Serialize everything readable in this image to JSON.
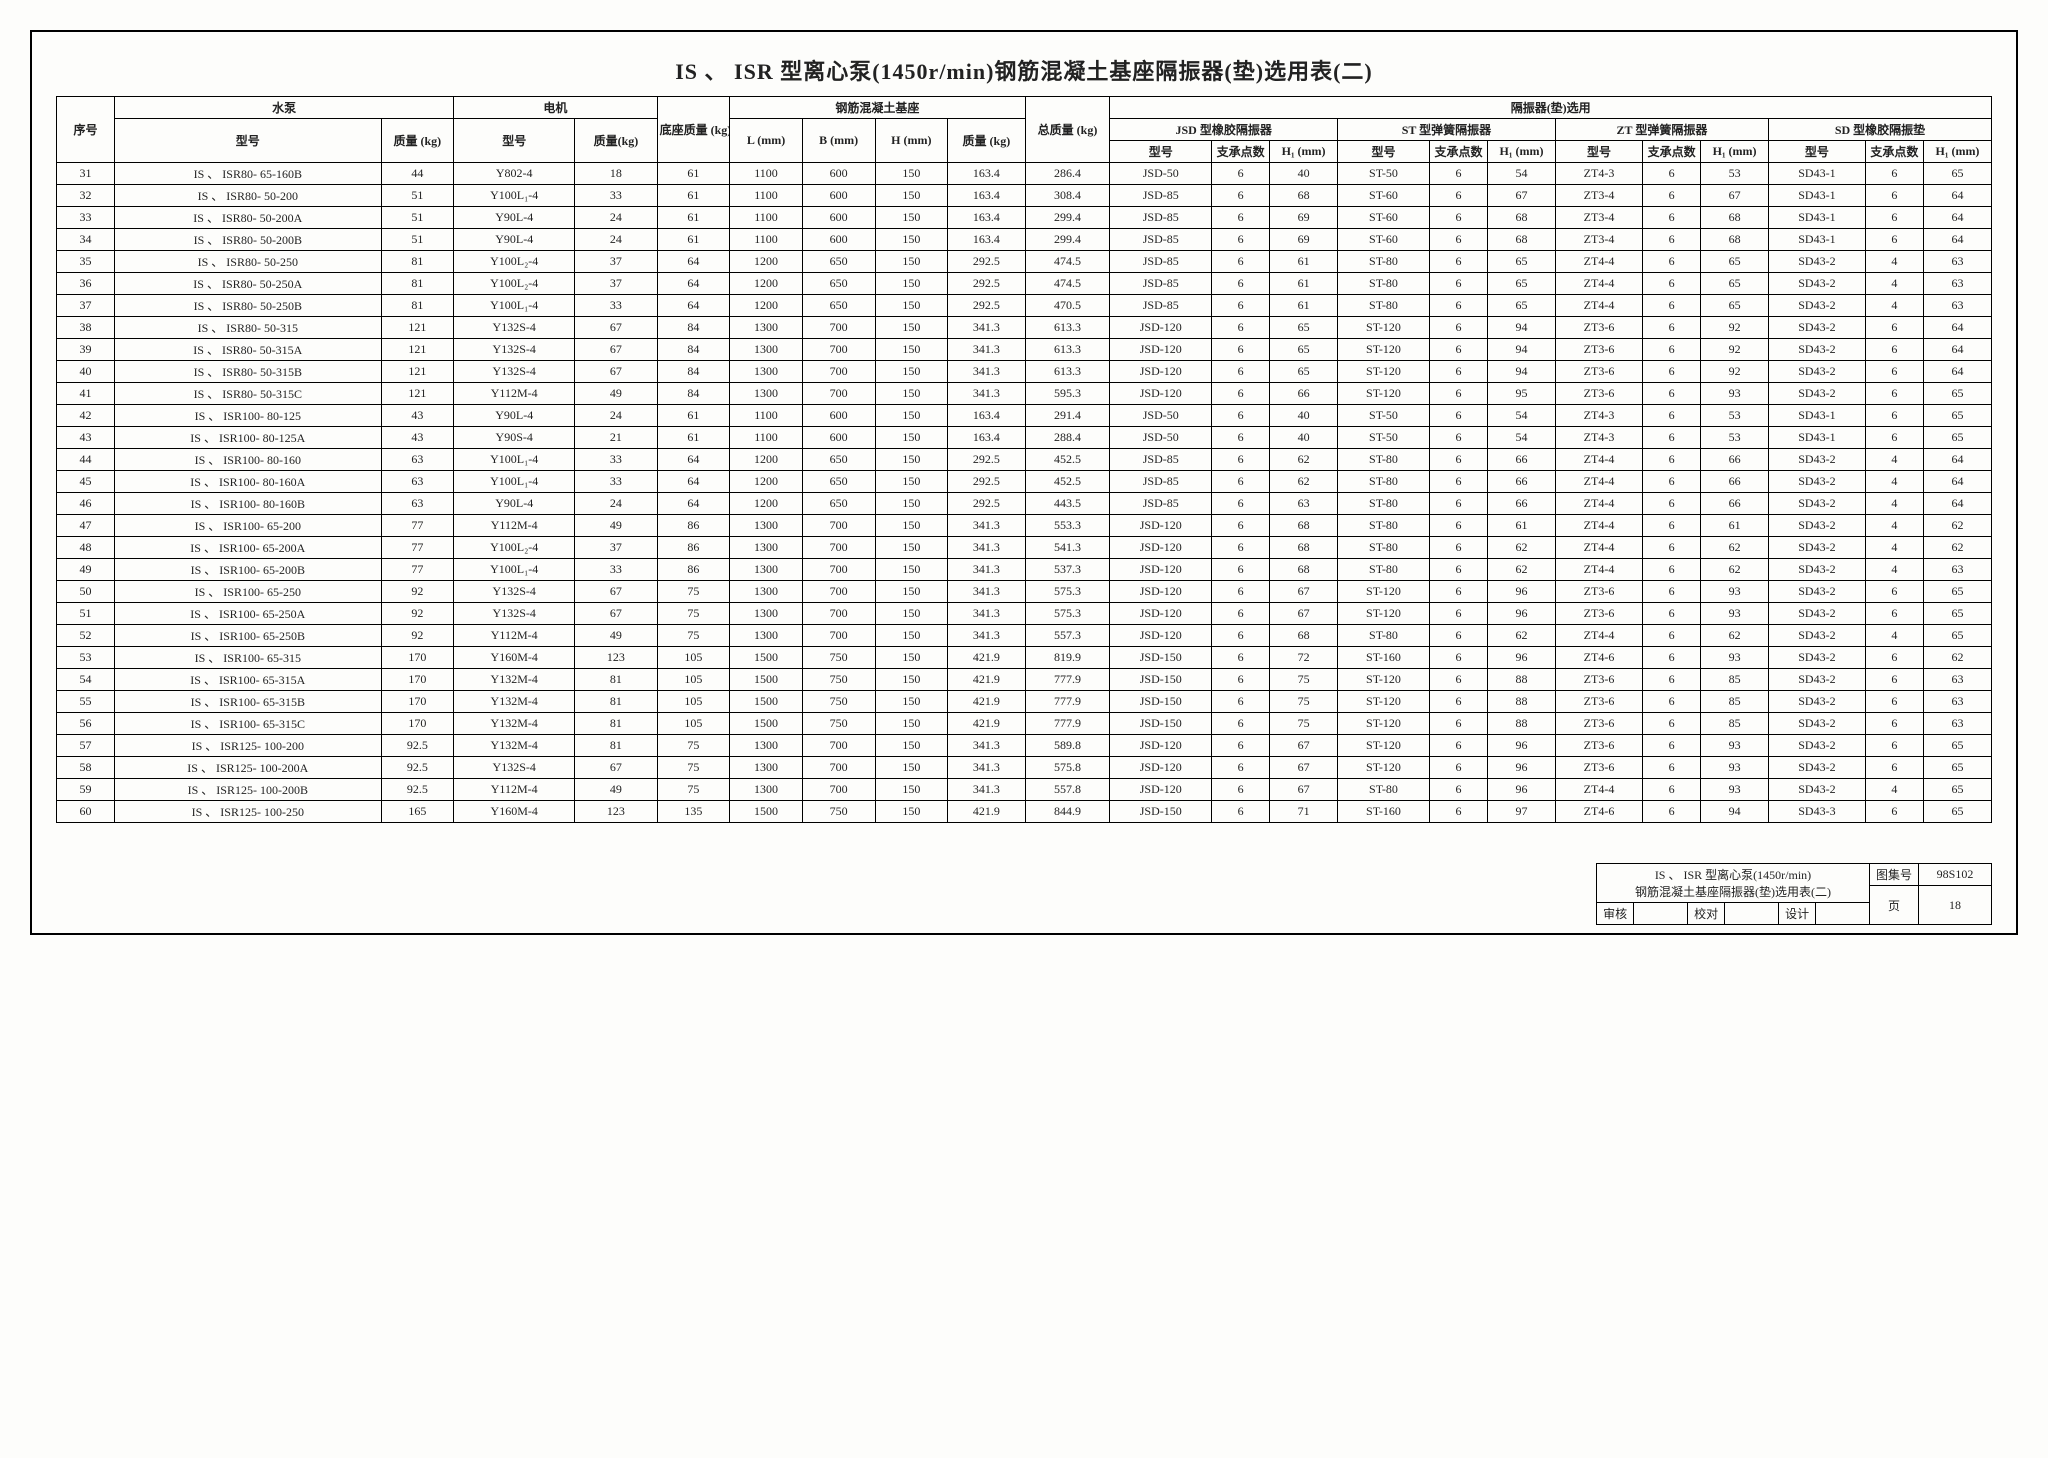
{
  "title": "IS 、 ISR 型离心泵(1450r/min)钢筋混凝土基座隔振器(垫)选用表(二)",
  "header": {
    "seq": "序号",
    "pump": "水泵",
    "pump_model": "型号",
    "pump_mass": "质量 (kg)",
    "motor": "电机",
    "motor_model": "型号",
    "motor_mass": "质量(kg)",
    "base_mass": "底座质量 (kg)",
    "concrete": "钢筋混凝土基座",
    "L": "L (mm)",
    "B": "B (mm)",
    "H": "H (mm)",
    "cmass": "质量 (kg)",
    "total": "总质量 (kg)",
    "isolator": "隔振器(垫)选用",
    "jsd": "JSD 型橡胶隔振器",
    "st": "ST 型弹簧隔振器",
    "zt": "ZT 型弹簧隔振器",
    "sd": "SD 型橡胶隔振垫",
    "sub_model": "型号",
    "sub_n": "支承点数",
    "sub_h1": "H₁ (mm)"
  },
  "rows": [
    {
      "n": "31",
      "pm": "IS 、 ISR80- 65-160B",
      "pw": "44",
      "mm": "Y802-4",
      "mw": "18",
      "bw": "61",
      "L": "1100",
      "B": "600",
      "H": "150",
      "cm": "163.4",
      "tw": "286.4",
      "jm": "JSD-50",
      "jn": "6",
      "jh": "40",
      "sm": "ST-50",
      "sn": "6",
      "sh": "54",
      "zm": "ZT4-3",
      "zn": "6",
      "zh": "53",
      "dm": "SD43-1",
      "dn": "6",
      "dh": "65"
    },
    {
      "n": "32",
      "pm": "IS 、 ISR80- 50-200",
      "pw": "51",
      "mm": "Y100L₁-4",
      "mw": "33",
      "bw": "61",
      "L": "1100",
      "B": "600",
      "H": "150",
      "cm": "163.4",
      "tw": "308.4",
      "jm": "JSD-85",
      "jn": "6",
      "jh": "68",
      "sm": "ST-60",
      "sn": "6",
      "sh": "67",
      "zm": "ZT3-4",
      "zn": "6",
      "zh": "67",
      "dm": "SD43-1",
      "dn": "6",
      "dh": "64"
    },
    {
      "n": "33",
      "pm": "IS 、 ISR80- 50-200A",
      "pw": "51",
      "mm": "Y90L-4",
      "mw": "24",
      "bw": "61",
      "L": "1100",
      "B": "600",
      "H": "150",
      "cm": "163.4",
      "tw": "299.4",
      "jm": "JSD-85",
      "jn": "6",
      "jh": "69",
      "sm": "ST-60",
      "sn": "6",
      "sh": "68",
      "zm": "ZT3-4",
      "zn": "6",
      "zh": "68",
      "dm": "SD43-1",
      "dn": "6",
      "dh": "64"
    },
    {
      "n": "34",
      "pm": "IS 、 ISR80- 50-200B",
      "pw": "51",
      "mm": "Y90L-4",
      "mw": "24",
      "bw": "61",
      "L": "1100",
      "B": "600",
      "H": "150",
      "cm": "163.4",
      "tw": "299.4",
      "jm": "JSD-85",
      "jn": "6",
      "jh": "69",
      "sm": "ST-60",
      "sn": "6",
      "sh": "68",
      "zm": "ZT3-4",
      "zn": "6",
      "zh": "68",
      "dm": "SD43-1",
      "dn": "6",
      "dh": "64"
    },
    {
      "n": "35",
      "pm": "IS 、 ISR80- 50-250",
      "pw": "81",
      "mm": "Y100L₂-4",
      "mw": "37",
      "bw": "64",
      "L": "1200",
      "B": "650",
      "H": "150",
      "cm": "292.5",
      "tw": "474.5",
      "jm": "JSD-85",
      "jn": "6",
      "jh": "61",
      "sm": "ST-80",
      "sn": "6",
      "sh": "65",
      "zm": "ZT4-4",
      "zn": "6",
      "zh": "65",
      "dm": "SD43-2",
      "dn": "4",
      "dh": "63"
    },
    {
      "n": "36",
      "pm": "IS 、 ISR80- 50-250A",
      "pw": "81",
      "mm": "Y100L₂-4",
      "mw": "37",
      "bw": "64",
      "L": "1200",
      "B": "650",
      "H": "150",
      "cm": "292.5",
      "tw": "474.5",
      "jm": "JSD-85",
      "jn": "6",
      "jh": "61",
      "sm": "ST-80",
      "sn": "6",
      "sh": "65",
      "zm": "ZT4-4",
      "zn": "6",
      "zh": "65",
      "dm": "SD43-2",
      "dn": "4",
      "dh": "63"
    },
    {
      "n": "37",
      "pm": "IS 、 ISR80- 50-250B",
      "pw": "81",
      "mm": "Y100L₁-4",
      "mw": "33",
      "bw": "64",
      "L": "1200",
      "B": "650",
      "H": "150",
      "cm": "292.5",
      "tw": "470.5",
      "jm": "JSD-85",
      "jn": "6",
      "jh": "61",
      "sm": "ST-80",
      "sn": "6",
      "sh": "65",
      "zm": "ZT4-4",
      "zn": "6",
      "zh": "65",
      "dm": "SD43-2",
      "dn": "4",
      "dh": "63"
    },
    {
      "n": "38",
      "pm": "IS 、 ISR80- 50-315",
      "pw": "121",
      "mm": "Y132S-4",
      "mw": "67",
      "bw": "84",
      "L": "1300",
      "B": "700",
      "H": "150",
      "cm": "341.3",
      "tw": "613.3",
      "jm": "JSD-120",
      "jn": "6",
      "jh": "65",
      "sm": "ST-120",
      "sn": "6",
      "sh": "94",
      "zm": "ZT3-6",
      "zn": "6",
      "zh": "92",
      "dm": "SD43-2",
      "dn": "6",
      "dh": "64"
    },
    {
      "n": "39",
      "pm": "IS 、 ISR80- 50-315A",
      "pw": "121",
      "mm": "Y132S-4",
      "mw": "67",
      "bw": "84",
      "L": "1300",
      "B": "700",
      "H": "150",
      "cm": "341.3",
      "tw": "613.3",
      "jm": "JSD-120",
      "jn": "6",
      "jh": "65",
      "sm": "ST-120",
      "sn": "6",
      "sh": "94",
      "zm": "ZT3-6",
      "zn": "6",
      "zh": "92",
      "dm": "SD43-2",
      "dn": "6",
      "dh": "64"
    },
    {
      "n": "40",
      "pm": "IS 、 ISR80- 50-315B",
      "pw": "121",
      "mm": "Y132S-4",
      "mw": "67",
      "bw": "84",
      "L": "1300",
      "B": "700",
      "H": "150",
      "cm": "341.3",
      "tw": "613.3",
      "jm": "JSD-120",
      "jn": "6",
      "jh": "65",
      "sm": "ST-120",
      "sn": "6",
      "sh": "94",
      "zm": "ZT3-6",
      "zn": "6",
      "zh": "92",
      "dm": "SD43-2",
      "dn": "6",
      "dh": "64"
    },
    {
      "n": "41",
      "pm": "IS 、 ISR80- 50-315C",
      "pw": "121",
      "mm": "Y112M-4",
      "mw": "49",
      "bw": "84",
      "L": "1300",
      "B": "700",
      "H": "150",
      "cm": "341.3",
      "tw": "595.3",
      "jm": "JSD-120",
      "jn": "6",
      "jh": "66",
      "sm": "ST-120",
      "sn": "6",
      "sh": "95",
      "zm": "ZT3-6",
      "zn": "6",
      "zh": "93",
      "dm": "SD43-2",
      "dn": "6",
      "dh": "65"
    },
    {
      "n": "42",
      "pm": "IS 、 ISR100- 80-125",
      "pw": "43",
      "mm": "Y90L-4",
      "mw": "24",
      "bw": "61",
      "L": "1100",
      "B": "600",
      "H": "150",
      "cm": "163.4",
      "tw": "291.4",
      "jm": "JSD-50",
      "jn": "6",
      "jh": "40",
      "sm": "ST-50",
      "sn": "6",
      "sh": "54",
      "zm": "ZT4-3",
      "zn": "6",
      "zh": "53",
      "dm": "SD43-1",
      "dn": "6",
      "dh": "65"
    },
    {
      "n": "43",
      "pm": "IS 、 ISR100- 80-125A",
      "pw": "43",
      "mm": "Y90S-4",
      "mw": "21",
      "bw": "61",
      "L": "1100",
      "B": "600",
      "H": "150",
      "cm": "163.4",
      "tw": "288.4",
      "jm": "JSD-50",
      "jn": "6",
      "jh": "40",
      "sm": "ST-50",
      "sn": "6",
      "sh": "54",
      "zm": "ZT4-3",
      "zn": "6",
      "zh": "53",
      "dm": "SD43-1",
      "dn": "6",
      "dh": "65"
    },
    {
      "n": "44",
      "pm": "IS 、 ISR100- 80-160",
      "pw": "63",
      "mm": "Y100L₁-4",
      "mw": "33",
      "bw": "64",
      "L": "1200",
      "B": "650",
      "H": "150",
      "cm": "292.5",
      "tw": "452.5",
      "jm": "JSD-85",
      "jn": "6",
      "jh": "62",
      "sm": "ST-80",
      "sn": "6",
      "sh": "66",
      "zm": "ZT4-4",
      "zn": "6",
      "zh": "66",
      "dm": "SD43-2",
      "dn": "4",
      "dh": "64"
    },
    {
      "n": "45",
      "pm": "IS 、 ISR100- 80-160A",
      "pw": "63",
      "mm": "Y100L₁-4",
      "mw": "33",
      "bw": "64",
      "L": "1200",
      "B": "650",
      "H": "150",
      "cm": "292.5",
      "tw": "452.5",
      "jm": "JSD-85",
      "jn": "6",
      "jh": "62",
      "sm": "ST-80",
      "sn": "6",
      "sh": "66",
      "zm": "ZT4-4",
      "zn": "6",
      "zh": "66",
      "dm": "SD43-2",
      "dn": "4",
      "dh": "64"
    },
    {
      "n": "46",
      "pm": "IS 、 ISR100- 80-160B",
      "pw": "63",
      "mm": "Y90L-4",
      "mw": "24",
      "bw": "64",
      "L": "1200",
      "B": "650",
      "H": "150",
      "cm": "292.5",
      "tw": "443.5",
      "jm": "JSD-85",
      "jn": "6",
      "jh": "63",
      "sm": "ST-80",
      "sn": "6",
      "sh": "66",
      "zm": "ZT4-4",
      "zn": "6",
      "zh": "66",
      "dm": "SD43-2",
      "dn": "4",
      "dh": "64"
    },
    {
      "n": "47",
      "pm": "IS 、 ISR100- 65-200",
      "pw": "77",
      "mm": "Y112M-4",
      "mw": "49",
      "bw": "86",
      "L": "1300",
      "B": "700",
      "H": "150",
      "cm": "341.3",
      "tw": "553.3",
      "jm": "JSD-120",
      "jn": "6",
      "jh": "68",
      "sm": "ST-80",
      "sn": "6",
      "sh": "61",
      "zm": "ZT4-4",
      "zn": "6",
      "zh": "61",
      "dm": "SD43-2",
      "dn": "4",
      "dh": "62"
    },
    {
      "n": "48",
      "pm": "IS 、 ISR100- 65-200A",
      "pw": "77",
      "mm": "Y100L₂-4",
      "mw": "37",
      "bw": "86",
      "L": "1300",
      "B": "700",
      "H": "150",
      "cm": "341.3",
      "tw": "541.3",
      "jm": "JSD-120",
      "jn": "6",
      "jh": "68",
      "sm": "ST-80",
      "sn": "6",
      "sh": "62",
      "zm": "ZT4-4",
      "zn": "6",
      "zh": "62",
      "dm": "SD43-2",
      "dn": "4",
      "dh": "62"
    },
    {
      "n": "49",
      "pm": "IS 、 ISR100- 65-200B",
      "pw": "77",
      "mm": "Y100L₁-4",
      "mw": "33",
      "bw": "86",
      "L": "1300",
      "B": "700",
      "H": "150",
      "cm": "341.3",
      "tw": "537.3",
      "jm": "JSD-120",
      "jn": "6",
      "jh": "68",
      "sm": "ST-80",
      "sn": "6",
      "sh": "62",
      "zm": "ZT4-4",
      "zn": "6",
      "zh": "62",
      "dm": "SD43-2",
      "dn": "4",
      "dh": "63"
    },
    {
      "n": "50",
      "pm": "IS 、 ISR100- 65-250",
      "pw": "92",
      "mm": "Y132S-4",
      "mw": "67",
      "bw": "75",
      "L": "1300",
      "B": "700",
      "H": "150",
      "cm": "341.3",
      "tw": "575.3",
      "jm": "JSD-120",
      "jn": "6",
      "jh": "67",
      "sm": "ST-120",
      "sn": "6",
      "sh": "96",
      "zm": "ZT3-6",
      "zn": "6",
      "zh": "93",
      "dm": "SD43-2",
      "dn": "6",
      "dh": "65"
    },
    {
      "n": "51",
      "pm": "IS 、 ISR100- 65-250A",
      "pw": "92",
      "mm": "Y132S-4",
      "mw": "67",
      "bw": "75",
      "L": "1300",
      "B": "700",
      "H": "150",
      "cm": "341.3",
      "tw": "575.3",
      "jm": "JSD-120",
      "jn": "6",
      "jh": "67",
      "sm": "ST-120",
      "sn": "6",
      "sh": "96",
      "zm": "ZT3-6",
      "zn": "6",
      "zh": "93",
      "dm": "SD43-2",
      "dn": "6",
      "dh": "65"
    },
    {
      "n": "52",
      "pm": "IS 、 ISR100- 65-250B",
      "pw": "92",
      "mm": "Y112M-4",
      "mw": "49",
      "bw": "75",
      "L": "1300",
      "B": "700",
      "H": "150",
      "cm": "341.3",
      "tw": "557.3",
      "jm": "JSD-120",
      "jn": "6",
      "jh": "68",
      "sm": "ST-80",
      "sn": "6",
      "sh": "62",
      "zm": "ZT4-4",
      "zn": "6",
      "zh": "62",
      "dm": "SD43-2",
      "dn": "4",
      "dh": "65"
    },
    {
      "n": "53",
      "pm": "IS 、 ISR100- 65-315",
      "pw": "170",
      "mm": "Y160M-4",
      "mw": "123",
      "bw": "105",
      "L": "1500",
      "B": "750",
      "H": "150",
      "cm": "421.9",
      "tw": "819.9",
      "jm": "JSD-150",
      "jn": "6",
      "jh": "72",
      "sm": "ST-160",
      "sn": "6",
      "sh": "96",
      "zm": "ZT4-6",
      "zn": "6",
      "zh": "93",
      "dm": "SD43-2",
      "dn": "6",
      "dh": "62"
    },
    {
      "n": "54",
      "pm": "IS 、 ISR100- 65-315A",
      "pw": "170",
      "mm": "Y132M-4",
      "mw": "81",
      "bw": "105",
      "L": "1500",
      "B": "750",
      "H": "150",
      "cm": "421.9",
      "tw": "777.9",
      "jm": "JSD-150",
      "jn": "6",
      "jh": "75",
      "sm": "ST-120",
      "sn": "6",
      "sh": "88",
      "zm": "ZT3-6",
      "zn": "6",
      "zh": "85",
      "dm": "SD43-2",
      "dn": "6",
      "dh": "63"
    },
    {
      "n": "55",
      "pm": "IS 、 ISR100- 65-315B",
      "pw": "170",
      "mm": "Y132M-4",
      "mw": "81",
      "bw": "105",
      "L": "1500",
      "B": "750",
      "H": "150",
      "cm": "421.9",
      "tw": "777.9",
      "jm": "JSD-150",
      "jn": "6",
      "jh": "75",
      "sm": "ST-120",
      "sn": "6",
      "sh": "88",
      "zm": "ZT3-6",
      "zn": "6",
      "zh": "85",
      "dm": "SD43-2",
      "dn": "6",
      "dh": "63"
    },
    {
      "n": "56",
      "pm": "IS 、 ISR100- 65-315C",
      "pw": "170",
      "mm": "Y132M-4",
      "mw": "81",
      "bw": "105",
      "L": "1500",
      "B": "750",
      "H": "150",
      "cm": "421.9",
      "tw": "777.9",
      "jm": "JSD-150",
      "jn": "6",
      "jh": "75",
      "sm": "ST-120",
      "sn": "6",
      "sh": "88",
      "zm": "ZT3-6",
      "zn": "6",
      "zh": "85",
      "dm": "SD43-2",
      "dn": "6",
      "dh": "63"
    },
    {
      "n": "57",
      "pm": "IS 、 ISR125- 100-200",
      "pw": "92.5",
      "mm": "Y132M-4",
      "mw": "81",
      "bw": "75",
      "L": "1300",
      "B": "700",
      "H": "150",
      "cm": "341.3",
      "tw": "589.8",
      "jm": "JSD-120",
      "jn": "6",
      "jh": "67",
      "sm": "ST-120",
      "sn": "6",
      "sh": "96",
      "zm": "ZT3-6",
      "zn": "6",
      "zh": "93",
      "dm": "SD43-2",
      "dn": "6",
      "dh": "65"
    },
    {
      "n": "58",
      "pm": "IS 、 ISR125- 100-200A",
      "pw": "92.5",
      "mm": "Y132S-4",
      "mw": "67",
      "bw": "75",
      "L": "1300",
      "B": "700",
      "H": "150",
      "cm": "341.3",
      "tw": "575.8",
      "jm": "JSD-120",
      "jn": "6",
      "jh": "67",
      "sm": "ST-120",
      "sn": "6",
      "sh": "96",
      "zm": "ZT3-6",
      "zn": "6",
      "zh": "93",
      "dm": "SD43-2",
      "dn": "6",
      "dh": "65"
    },
    {
      "n": "59",
      "pm": "IS 、 ISR125- 100-200B",
      "pw": "92.5",
      "mm": "Y112M-4",
      "mw": "49",
      "bw": "75",
      "L": "1300",
      "B": "700",
      "H": "150",
      "cm": "341.3",
      "tw": "557.8",
      "jm": "JSD-120",
      "jn": "6",
      "jh": "67",
      "sm": "ST-80",
      "sn": "6",
      "sh": "96",
      "zm": "ZT4-4",
      "zn": "6",
      "zh": "93",
      "dm": "SD43-2",
      "dn": "4",
      "dh": "65"
    },
    {
      "n": "60",
      "pm": "IS 、 ISR125- 100-250",
      "pw": "165",
      "mm": "Y160M-4",
      "mw": "123",
      "bw": "135",
      "L": "1500",
      "B": "750",
      "H": "150",
      "cm": "421.9",
      "tw": "844.9",
      "jm": "JSD-150",
      "jn": "6",
      "jh": "71",
      "sm": "ST-160",
      "sn": "6",
      "sh": "97",
      "zm": "ZT4-6",
      "zn": "6",
      "zh": "94",
      "dm": "SD43-3",
      "dn": "6",
      "dh": "65"
    }
  ],
  "footer": {
    "line1": "IS 、 ISR 型离心泵(1450r/min)",
    "line2": "钢筋混凝土基座隔振器(垫)选用表(二)",
    "tujihao_label": "图集号",
    "tujihao": "98S102",
    "shenhe": "审核",
    "jiaodu": "校对",
    "sheji": "设计",
    "page_label": "页",
    "page": "18"
  }
}
